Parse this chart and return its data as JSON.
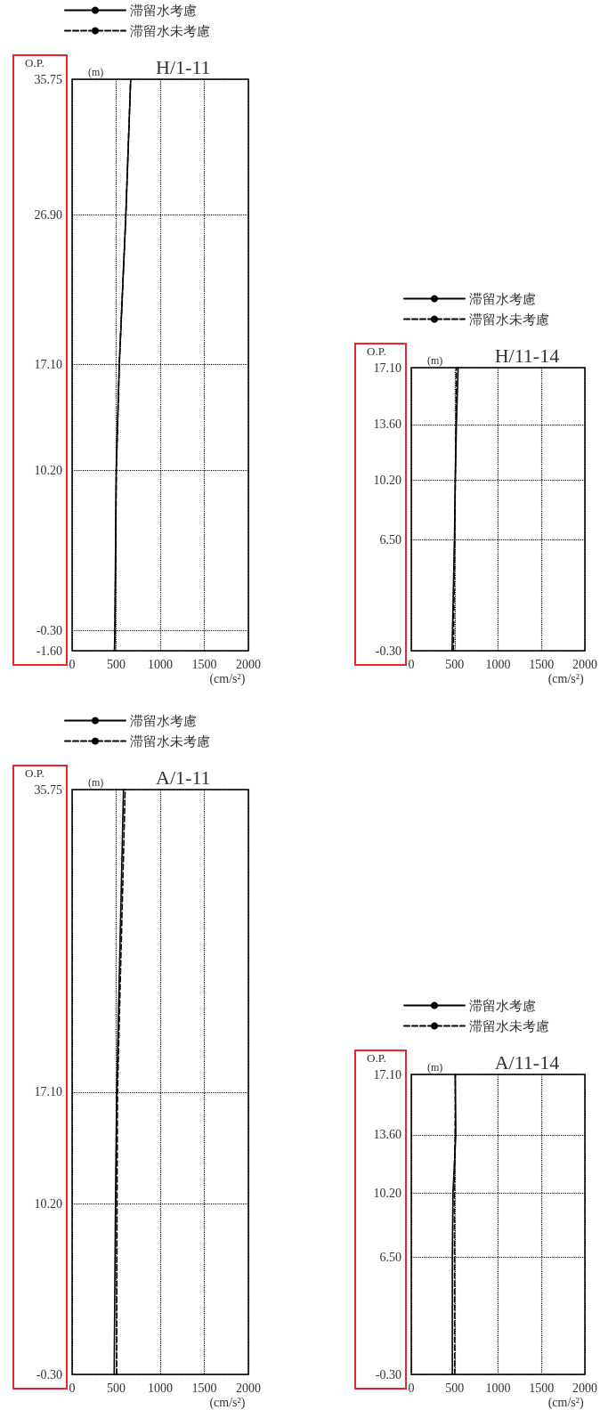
{
  "chart_data": [
    {
      "type": "line",
      "title": "H/1-11",
      "ylabel": "O.P.",
      "xlabel": "(cm/s²)",
      "annotations": [
        "(m)"
      ],
      "legend": "top",
      "grid": true,
      "marker": "none",
      "xlim": [
        0,
        2000
      ],
      "xticks": [
        0,
        500,
        1000,
        1500,
        2000
      ],
      "ylim": [
        -1.6,
        35.75
      ],
      "yticks": [
        {
          "value": -1.6,
          "label": "-1.60"
        },
        {
          "value": -0.3,
          "label": "-0.30"
        },
        {
          "value": 10.2,
          "label": "10.20"
        },
        {
          "value": 17.1,
          "label": "17.10"
        },
        {
          "value": 26.9,
          "label": "26.90"
        },
        35.75
      ],
      "series": [
        {
          "name": "滞留水考慮",
          "color": "#000000",
          "line_style": "solid",
          "x": [
            480,
            485,
            500,
            535,
            610,
            665
          ],
          "values": [
            -1.6,
            -0.3,
            10.2,
            17.1,
            26.9,
            35.75
          ]
        },
        {
          "name": "滞留水未考慮",
          "color": "#000000",
          "line_style": "dashed",
          "x": [
            482,
            487,
            502,
            536,
            610,
            664
          ],
          "values": [
            -1.6,
            -0.3,
            10.2,
            17.1,
            26.9,
            35.75
          ]
        }
      ]
    },
    {
      "type": "line",
      "title": "H/11-14",
      "ylabel": "O.P.",
      "xlabel": "(cm/s²)",
      "annotations": [
        "(m)"
      ],
      "legend": "top",
      "grid": true,
      "marker": "none",
      "xlim": [
        0,
        2000
      ],
      "xticks": [
        0,
        500,
        1000,
        1500,
        2000
      ],
      "ylim": [
        -0.3,
        17.1
      ],
      "yticks": [
        {
          "value": -0.3,
          "label": "-0.30"
        },
        {
          "value": 6.5,
          "label": "6.50"
        },
        {
          "value": 10.2,
          "label": "10.20"
        },
        {
          "value": 13.6,
          "label": "13.60"
        },
        {
          "value": 17.1,
          "label": "17.10"
        }
      ],
      "series": [
        {
          "name": "滞留水考慮",
          "color": "#000000",
          "line_style": "solid",
          "x": [
            470,
            497,
            507,
            520,
            540
          ],
          "values": [
            -0.3,
            6.5,
            10.2,
            13.6,
            17.1
          ]
        },
        {
          "name": "滞留水未考慮",
          "color": "#000000",
          "line_style": "dashed",
          "x": [
            486,
            500,
            507,
            515,
            520
          ],
          "values": [
            -0.3,
            6.5,
            10.2,
            13.6,
            17.1
          ]
        }
      ]
    },
    {
      "type": "line",
      "title": "A/1-11",
      "ylabel": "O.P.",
      "xlabel": "(cm/s²)",
      "annotations": [
        "(m)"
      ],
      "legend": "top",
      "grid": true,
      "marker": "none",
      "xlim": [
        0,
        2000
      ],
      "xticks": [
        0,
        500,
        1000,
        1500,
        2000
      ],
      "ylim": [
        -0.3,
        35.75
      ],
      "yticks": [
        {
          "value": -0.3,
          "label": "-0.30"
        },
        {
          "value": 10.2,
          "label": "10.20"
        },
        {
          "value": 17.1,
          "label": "17.10"
        },
        35.75
      ],
      "series": [
        {
          "name": "滞留水考慮",
          "color": "#000000",
          "line_style": "solid",
          "x": [
            477,
            492,
            506,
            583
          ],
          "values": [
            -0.3,
            10.2,
            17.1,
            35.75
          ]
        },
        {
          "name": "滞留水未考慮",
          "color": "#000000",
          "line_style": "dashed",
          "x": [
            506,
            510,
            515,
            602
          ],
          "values": [
            -0.3,
            10.2,
            17.1,
            35.75
          ]
        }
      ]
    },
    {
      "type": "line",
      "title": "A/11-14",
      "ylabel": "O.P.",
      "xlabel": "(cm/s²)",
      "annotations": [
        "(m)"
      ],
      "legend": "top",
      "grid": true,
      "marker": "none",
      "xlim": [
        0,
        2000
      ],
      "xticks": [
        0,
        500,
        1000,
        1500,
        2000
      ],
      "ylim": [
        -0.3,
        17.1
      ],
      "yticks": [
        {
          "value": -0.3,
          "label": "-0.30"
        },
        {
          "value": 6.5,
          "label": "6.50"
        },
        {
          "value": 10.2,
          "label": "10.20"
        },
        {
          "value": 13.6,
          "label": "13.60"
        },
        {
          "value": 17.1,
          "label": "17.10"
        }
      ],
      "series": [
        {
          "name": "滞留水考慮",
          "color": "#000000",
          "line_style": "solid",
          "x": [
            473,
            473,
            480,
            513,
            507
          ],
          "values": [
            -0.3,
            6.5,
            10.2,
            13.6,
            17.1
          ]
        },
        {
          "name": "滞留水未考慮",
          "color": "#000000",
          "line_style": "dashed",
          "x": [
            500,
            498,
            495,
            505,
            507
          ],
          "values": [
            -0.3,
            6.5,
            10.2,
            13.6,
            17.1
          ]
        }
      ]
    }
  ]
}
